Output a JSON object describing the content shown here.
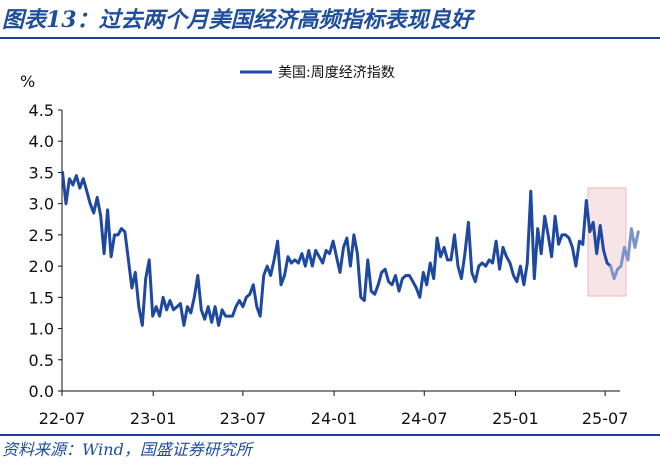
{
  "figure": {
    "title": "图表13：过去两个月美国经济高频指标表现良好",
    "source": "资料来源：Wind，国盛证券研究所"
  },
  "colors": {
    "header": "#1f4e9c",
    "series": "#1f49a0",
    "highlight_series": "#7d93c9",
    "highlight_box": "#f6e4e6",
    "highlight_box_border": "#f0b8bd"
  },
  "chart_data": {
    "type": "line",
    "y_unit": "%",
    "ylim": [
      0,
      4.5
    ],
    "y_ticks": [
      "0.0",
      "0.5",
      "1.0",
      "1.5",
      "2.0",
      "2.5",
      "3.0",
      "3.5",
      "4.0",
      "4.5"
    ],
    "x_ticks": [
      "22-07",
      "23-01",
      "23-07",
      "24-01",
      "24-07",
      "25-01",
      "25-07"
    ],
    "xlim": [
      "2022-07-01",
      "2025-07-31"
    ],
    "grid": false,
    "legend": "top-center",
    "series": [
      {
        "name": "美国:周度经济指数",
        "x": [
          "2022-07-02",
          "2022-07-09",
          "2022-07-16",
          "2022-07-23",
          "2022-07-30",
          "2022-08-06",
          "2022-08-13",
          "2022-08-20",
          "2022-08-27",
          "2022-09-03",
          "2022-09-10",
          "2022-09-17",
          "2022-09-24",
          "2022-10-01",
          "2022-10-08",
          "2022-10-15",
          "2022-10-22",
          "2022-10-29",
          "2022-11-05",
          "2022-11-12",
          "2022-11-19",
          "2022-11-26",
          "2022-12-03",
          "2022-12-10",
          "2022-12-17",
          "2022-12-24",
          "2022-12-31",
          "2023-01-07",
          "2023-01-14",
          "2023-01-21",
          "2023-01-28",
          "2023-02-04",
          "2023-02-11",
          "2023-02-18",
          "2023-02-25",
          "2023-03-04",
          "2023-03-11",
          "2023-03-18",
          "2023-03-25",
          "2023-04-01",
          "2023-04-08",
          "2023-04-15",
          "2023-04-22",
          "2023-04-29",
          "2023-05-06",
          "2023-05-13",
          "2023-05-20",
          "2023-05-27",
          "2023-06-03",
          "2023-06-10",
          "2023-06-17",
          "2023-06-24",
          "2023-07-01",
          "2023-07-08",
          "2023-07-15",
          "2023-07-22",
          "2023-07-29",
          "2023-08-05",
          "2023-08-12",
          "2023-08-19",
          "2023-08-26",
          "2023-09-02",
          "2023-09-09",
          "2023-09-16",
          "2023-09-23",
          "2023-09-30",
          "2023-10-07",
          "2023-10-14",
          "2023-10-21",
          "2023-10-28",
          "2023-11-04",
          "2023-11-11",
          "2023-11-18",
          "2023-11-25",
          "2023-12-02",
          "2023-12-09",
          "2023-12-16",
          "2023-12-23",
          "2023-12-30",
          "2024-01-06",
          "2024-01-13",
          "2024-01-20",
          "2024-01-27",
          "2024-02-03",
          "2024-02-10",
          "2024-02-17",
          "2024-02-24",
          "2024-03-02",
          "2024-03-09",
          "2024-03-16",
          "2024-03-23",
          "2024-03-30",
          "2024-04-06",
          "2024-04-13",
          "2024-04-20",
          "2024-04-27",
          "2024-05-04",
          "2024-05-11",
          "2024-05-18",
          "2024-05-25",
          "2024-06-01",
          "2024-06-08",
          "2024-06-15",
          "2024-06-22",
          "2024-06-29",
          "2024-07-06",
          "2024-07-13",
          "2024-07-20",
          "2024-07-27",
          "2024-08-03",
          "2024-08-10",
          "2024-08-17",
          "2024-08-24",
          "2024-08-31",
          "2024-09-07",
          "2024-09-14",
          "2024-09-21",
          "2024-09-28",
          "2024-10-05",
          "2024-10-12",
          "2024-10-19",
          "2024-10-26",
          "2024-11-02",
          "2024-11-09",
          "2024-11-16",
          "2024-11-23",
          "2024-11-30",
          "2024-12-07",
          "2024-12-14",
          "2024-12-21",
          "2024-12-28",
          "2025-01-04",
          "2025-01-11",
          "2025-01-18",
          "2025-01-25",
          "2025-02-01",
          "2025-02-08",
          "2025-02-15",
          "2025-02-22",
          "2025-03-01",
          "2025-03-08",
          "2025-03-15",
          "2025-03-22",
          "2025-03-29",
          "2025-04-05",
          "2025-04-12",
          "2025-04-19",
          "2025-04-26",
          "2025-05-03",
          "2025-05-10",
          "2025-05-17"
        ],
        "values": [
          3.5,
          3.0,
          3.4,
          3.3,
          3.45,
          3.25,
          3.4,
          3.2,
          3.0,
          2.85,
          3.1,
          2.8,
          2.2,
          2.9,
          2.15,
          2.5,
          2.5,
          2.6,
          2.55,
          2.1,
          1.65,
          1.9,
          1.35,
          1.05,
          1.8,
          2.1,
          1.2,
          1.35,
          1.2,
          1.5,
          1.3,
          1.45,
          1.3,
          1.35,
          1.4,
          1.05,
          1.35,
          1.25,
          1.5,
          1.85,
          1.3,
          1.15,
          1.35,
          1.1,
          1.35,
          1.05,
          1.3,
          1.2,
          1.2,
          1.2,
          1.35,
          1.45,
          1.35,
          1.5,
          1.55,
          1.7,
          1.35,
          1.2,
          1.85,
          2.0,
          1.85,
          2.1,
          2.4,
          1.7,
          1.85,
          2.15,
          2.05,
          2.1,
          2.05,
          2.2,
          2.0,
          2.25,
          2.0,
          2.25,
          2.15,
          2.05,
          2.25,
          2.2,
          2.4,
          2.15,
          1.9,
          2.3,
          2.45,
          2.0,
          2.5,
          2.2,
          1.5,
          1.45,
          2.1,
          1.6,
          1.55,
          1.7,
          1.9,
          1.95,
          1.75,
          1.7,
          1.85,
          1.6,
          1.8,
          1.85,
          1.85,
          1.75,
          1.65,
          1.5,
          1.9,
          1.7,
          2.05,
          1.8,
          2.45,
          2.15,
          2.3,
          2.1,
          2.1,
          2.5,
          2.0,
          1.8,
          2.2,
          2.7,
          1.9,
          1.75,
          2.0,
          2.05,
          2.0,
          2.1,
          2.05,
          2.4,
          1.95,
          2.3,
          2.15,
          2.05,
          1.85,
          1.75,
          2.0,
          1.7,
          2.05,
          3.2,
          1.8,
          2.6,
          2.2,
          2.8,
          2.5,
          2.15,
          2.8,
          2.35,
          2.5,
          2.5,
          2.45,
          2.3,
          2.0,
          2.4,
          2.35
        ]
      },
      {
        "name": "",
        "x": [
          "2025-05-17",
          "2025-05-24",
          "2025-05-31",
          "2025-06-07",
          "2025-06-14",
          "2025-06-21",
          "2025-06-28",
          "2025-07-05",
          "2025-07-12"
        ],
        "values": [
          2.35,
          3.05,
          2.55,
          2.7,
          2.2,
          2.65,
          2.25,
          2.05,
          2.0
        ]
      },
      {
        "name": "",
        "x": [
          "2025-07-12",
          "2025-07-19",
          "2025-07-26",
          "2025-08-02",
          "2025-08-09",
          "2025-08-16",
          "2025-08-23",
          "2025-08-30",
          "2025-09-06"
        ],
        "values": [
          2.0,
          1.8,
          1.95,
          2.0,
          2.3,
          2.1,
          2.6,
          2.3,
          2.55
        ]
      }
    ]
  }
}
